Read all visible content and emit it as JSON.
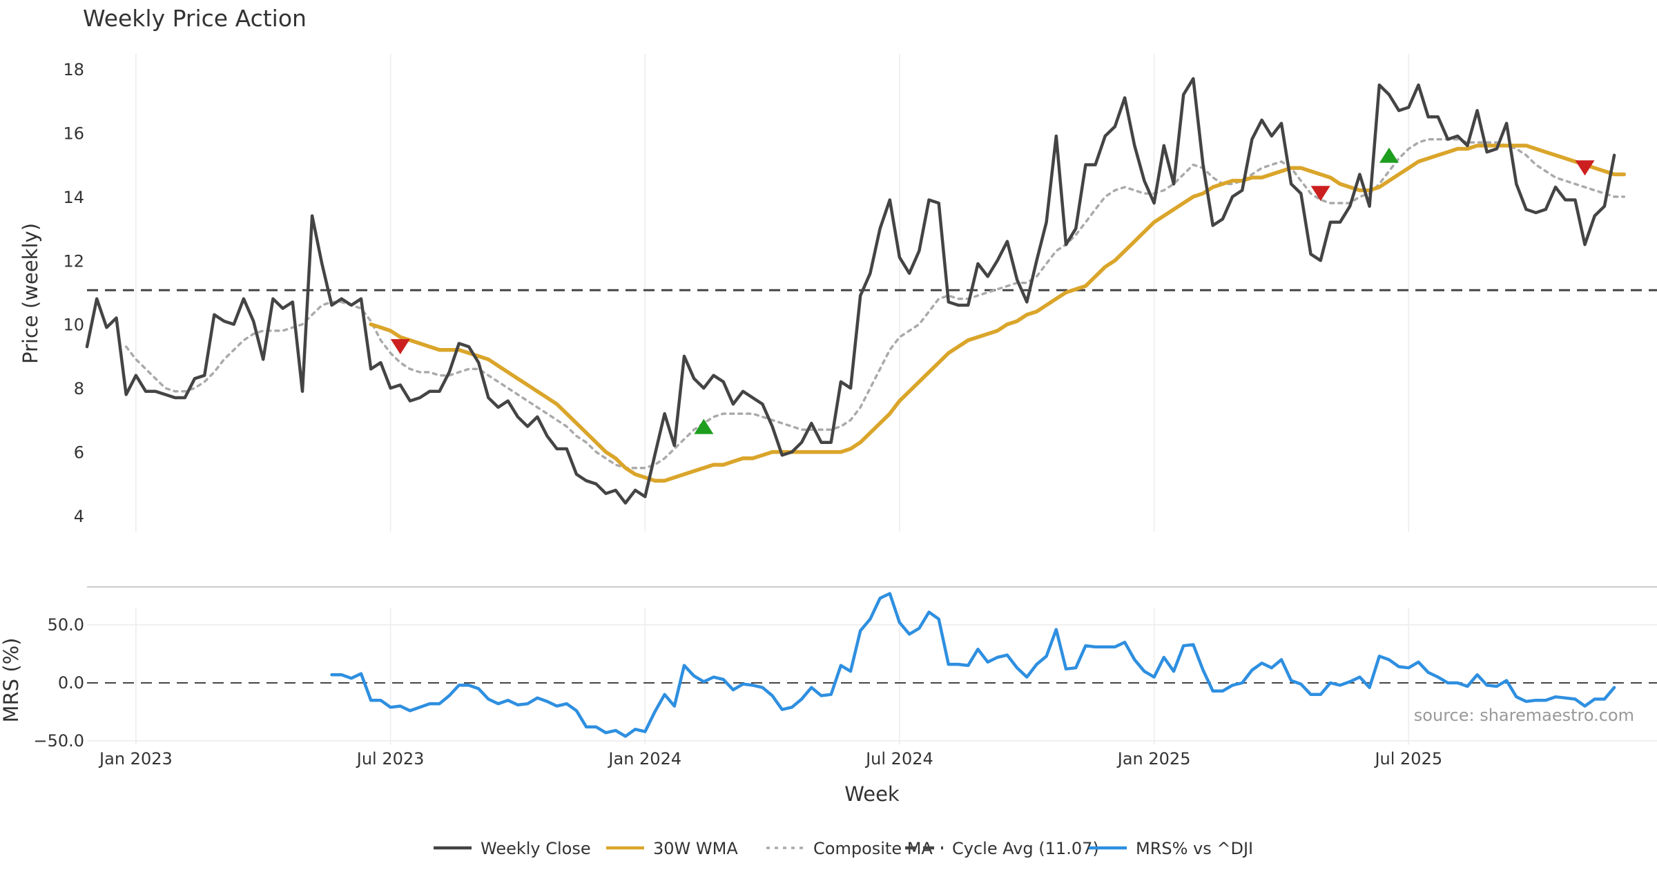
{
  "chart_data": [
    {
      "type": "line",
      "title": "Weekly Price Action",
      "xlabel": "",
      "ylabel": "Price (weekly)",
      "ylim": [
        3.6,
        18.5
      ],
      "yticks": [
        4,
        6,
        8,
        10,
        12,
        14,
        16,
        18
      ],
      "grid": true,
      "start_date": "2022-11-28",
      "weeks_count": 158,
      "series": [
        {
          "name": "Weekly Close",
          "color": "#444444",
          "style": "solid",
          "values": [
            9.3,
            10.8,
            9.9,
            10.2,
            7.8,
            8.4,
            7.9,
            7.9,
            7.8,
            7.7,
            7.7,
            8.3,
            8.4,
            10.3,
            10.1,
            10.0,
            10.8,
            10.1,
            8.9,
            10.8,
            10.5,
            10.7,
            7.9,
            13.4,
            11.9,
            10.6,
            10.8,
            10.6,
            10.8,
            8.6,
            8.8,
            8.0,
            8.1,
            7.6,
            7.7,
            7.9,
            7.9,
            8.5,
            9.4,
            9.3,
            8.8,
            7.7,
            7.4,
            7.6,
            7.1,
            6.8,
            7.1,
            6.5,
            6.1,
            6.1,
            5.3,
            5.1,
            5.0,
            4.7,
            4.8,
            4.4,
            4.8,
            4.6,
            5.9,
            7.2,
            6.2,
            9.0,
            8.3,
            8.0,
            8.4,
            8.2,
            7.5,
            7.9,
            7.7,
            7.5,
            6.8,
            5.9,
            6.0,
            6.3,
            6.9,
            6.3,
            6.3,
            8.2,
            8.0,
            10.9,
            11.6,
            13.0,
            13.9,
            12.1,
            11.6,
            12.3,
            13.9,
            13.8,
            10.7,
            10.6,
            10.6,
            11.9,
            11.5,
            12.0,
            12.6,
            11.4,
            10.7,
            12.0,
            13.2,
            15.9,
            12.5,
            13.0,
            15.0,
            15.0,
            15.9,
            16.2,
            17.1,
            15.6,
            14.5,
            13.8,
            15.6,
            14.4,
            17.2,
            17.7,
            15.0,
            13.1,
            13.3,
            14.0,
            14.2,
            15.8,
            16.4,
            15.9,
            16.3,
            14.4,
            14.1,
            12.2,
            12.0,
            13.2,
            13.2,
            13.7,
            14.7,
            13.7,
            17.5,
            17.2,
            16.7,
            16.8,
            17.5,
            16.5,
            16.5,
            15.8,
            15.9,
            15.6,
            16.7,
            15.4,
            15.5,
            16.3,
            14.4,
            13.6,
            13.5,
            13.6,
            14.3,
            13.9,
            13.9,
            12.5,
            13.4,
            13.7,
            15.3
          ]
        },
        {
          "name": "30W WMA",
          "color": "#DAA52A",
          "style": "solid",
          "values": [
            null,
            null,
            null,
            null,
            null,
            null,
            null,
            null,
            null,
            null,
            null,
            null,
            null,
            null,
            null,
            null,
            null,
            null,
            null,
            null,
            null,
            null,
            null,
            null,
            null,
            null,
            null,
            null,
            null,
            10.0,
            9.9,
            9.8,
            9.6,
            9.5,
            9.4,
            9.3,
            9.2,
            9.2,
            9.2,
            9.1,
            9.0,
            8.9,
            8.7,
            8.5,
            8.3,
            8.1,
            7.9,
            7.7,
            7.5,
            7.2,
            6.9,
            6.6,
            6.3,
            6.0,
            5.8,
            5.5,
            5.3,
            5.2,
            5.1,
            5.1,
            5.2,
            5.3,
            5.4,
            5.5,
            5.6,
            5.6,
            5.7,
            5.8,
            5.8,
            5.9,
            6.0,
            6.0,
            6.0,
            6.0,
            6.0,
            6.0,
            6.0,
            6.0,
            6.1,
            6.3,
            6.6,
            6.9,
            7.2,
            7.6,
            7.9,
            8.2,
            8.5,
            8.8,
            9.1,
            9.3,
            9.5,
            9.6,
            9.7,
            9.8,
            10.0,
            10.1,
            10.3,
            10.4,
            10.6,
            10.8,
            11.0,
            11.1,
            11.2,
            11.5,
            11.8,
            12.0,
            12.3,
            12.6,
            12.9,
            13.2,
            13.4,
            13.6,
            13.8,
            14.0,
            14.1,
            14.3,
            14.4,
            14.5,
            14.5,
            14.6,
            14.6,
            14.7,
            14.8,
            14.9,
            14.9,
            14.8,
            14.7,
            14.6,
            14.4,
            14.3,
            14.2,
            14.2,
            14.3,
            14.5,
            14.7,
            14.9,
            15.1,
            15.2,
            15.3,
            15.4,
            15.5,
            15.5,
            15.6,
            15.6,
            15.6,
            15.6,
            15.6,
            15.6,
            15.5,
            15.4,
            15.3,
            15.2,
            15.1,
            15.0,
            14.9,
            14.8,
            14.7,
            14.7
          ]
        },
        {
          "name": "Composite MA",
          "color": "#AAAAAA",
          "style": "dotted",
          "values": [
            null,
            null,
            null,
            null,
            9.3,
            8.9,
            8.6,
            8.3,
            8.0,
            7.9,
            7.9,
            8.0,
            8.2,
            8.5,
            8.9,
            9.2,
            9.5,
            9.7,
            9.8,
            9.8,
            9.8,
            9.9,
            10.0,
            10.3,
            10.6,
            10.7,
            10.7,
            10.6,
            10.5,
            10.1,
            9.5,
            9.1,
            8.8,
            8.6,
            8.5,
            8.5,
            8.4,
            8.4,
            8.5,
            8.6,
            8.6,
            8.4,
            8.2,
            8.0,
            7.8,
            7.6,
            7.4,
            7.2,
            7.0,
            6.8,
            6.5,
            6.3,
            6.0,
            5.8,
            5.6,
            5.5,
            5.5,
            5.5,
            5.6,
            5.8,
            6.1,
            6.4,
            6.7,
            6.9,
            7.1,
            7.2,
            7.2,
            7.2,
            7.2,
            7.1,
            7.0,
            6.9,
            6.8,
            6.7,
            6.7,
            6.7,
            6.7,
            6.8,
            7.0,
            7.4,
            8.0,
            8.6,
            9.2,
            9.6,
            9.8,
            10.0,
            10.4,
            10.8,
            10.9,
            10.8,
            10.8,
            10.9,
            11.0,
            11.1,
            11.2,
            11.3,
            11.3,
            11.5,
            11.9,
            12.3,
            12.5,
            12.8,
            13.2,
            13.6,
            14.0,
            14.2,
            14.3,
            14.2,
            14.1,
            14.1,
            14.2,
            14.4,
            14.7,
            15.0,
            14.9,
            14.6,
            14.4,
            14.4,
            14.5,
            14.7,
            14.9,
            15.0,
            15.1,
            14.9,
            14.5,
            14.1,
            13.9,
            13.8,
            13.8,
            13.8,
            14.0,
            14.1,
            14.4,
            14.8,
            15.2,
            15.5,
            15.7,
            15.8,
            15.8,
            15.8,
            15.8,
            15.7,
            15.7,
            15.7,
            15.7,
            15.6,
            15.5,
            15.3,
            15.0,
            14.8,
            14.6,
            14.5,
            14.4,
            14.3,
            14.2,
            14.1,
            14.0,
            14.0
          ]
        }
      ],
      "reference_line": {
        "name": "Cycle Avg (11.07)",
        "value": 11.07,
        "color": "#444444",
        "style": "dashed"
      },
      "markers": [
        {
          "week": 32,
          "value": 9.3,
          "kind": "sell",
          "color": "#CC1F1F"
        },
        {
          "week": 63,
          "value": 6.8,
          "kind": "buy",
          "color": "#1E9E1E"
        },
        {
          "week": 126,
          "value": 14.1,
          "kind": "sell",
          "color": "#CC1F1F"
        },
        {
          "week": 133,
          "value": 15.3,
          "kind": "buy",
          "color": "#1E9E1E"
        },
        {
          "week": 153,
          "value": 14.9,
          "kind": "sell",
          "color": "#CC1F1F"
        }
      ]
    },
    {
      "type": "line",
      "title": "",
      "xlabel": "Week",
      "ylabel": "MRS (%)",
      "ylim": [
        -50,
        80
      ],
      "yticks": [
        -50,
        0,
        50
      ],
      "ytick_labels": [
        "−50.0",
        "0.0",
        "50.0"
      ],
      "xtick_labels": [
        "Jan 2023",
        "Jul 2023",
        "Jan 2024",
        "Jul 2024",
        "Jan 2025",
        "Jul 2025"
      ],
      "xtick_weeks": [
        5,
        31,
        57,
        83,
        109,
        135
      ],
      "start_date": "2022-11-28",
      "series": [
        {
          "name": "MRS% vs ^DJI",
          "color": "#2E8FE0",
          "style": "solid",
          "values": [
            null,
            null,
            null,
            null,
            null,
            null,
            null,
            null,
            null,
            null,
            null,
            null,
            null,
            null,
            null,
            null,
            null,
            null,
            null,
            null,
            null,
            null,
            null,
            null,
            null,
            7,
            7,
            4,
            8,
            -15,
            -15,
            -21,
            -20,
            -24,
            -21,
            -18,
            -18,
            -11,
            -2,
            -2,
            -5,
            -14,
            -18,
            -15,
            -19,
            -18,
            -13,
            -16,
            -20,
            -18,
            -24,
            -38,
            -38,
            -43,
            -41,
            -46,
            -40,
            -42,
            -25,
            -10,
            -20,
            15,
            6,
            1,
            5,
            3,
            -6,
            -1,
            -2,
            -4,
            -11,
            -23,
            -21,
            -14,
            -4,
            -11,
            -10,
            15,
            10,
            45,
            55,
            73,
            77,
            52,
            42,
            47,
            61,
            55,
            16,
            16,
            15,
            29,
            18,
            22,
            24,
            13,
            5,
            16,
            23,
            46,
            12,
            13,
            32,
            31,
            31,
            31,
            35,
            20,
            10,
            5,
            22,
            10,
            32,
            33,
            11,
            -7,
            -7,
            -2,
            0,
            11,
            17,
            13,
            20,
            2,
            -1,
            -10,
            -10,
            0,
            -2,
            1,
            5,
            -4,
            23,
            20,
            14,
            13,
            18,
            9,
            5,
            0,
            0,
            -3,
            7,
            -2,
            -3,
            2,
            -12,
            -16,
            -15,
            -15,
            -12,
            -13,
            -14,
            -20,
            -14,
            -14,
            -4
          ]
        }
      ],
      "reference_line": {
        "value": 0,
        "color": "#444444",
        "style": "dashed"
      }
    }
  ],
  "legend": {
    "placement": "bottom-center",
    "items": [
      {
        "label": "Weekly Close",
        "color": "#444444",
        "style": "solid"
      },
      {
        "label": "30W WMA",
        "color": "#DAA52A",
        "style": "solid"
      },
      {
        "label": "Composite MA",
        "color": "#AAAAAA",
        "style": "dotted"
      },
      {
        "label": "Cycle Avg (11.07)",
        "color": "#444444",
        "style": "dashed"
      },
      {
        "label": "MRS% vs ^DJI",
        "color": "#2E8FE0",
        "style": "solid"
      }
    ]
  },
  "source": "source: sharemaestro.com"
}
